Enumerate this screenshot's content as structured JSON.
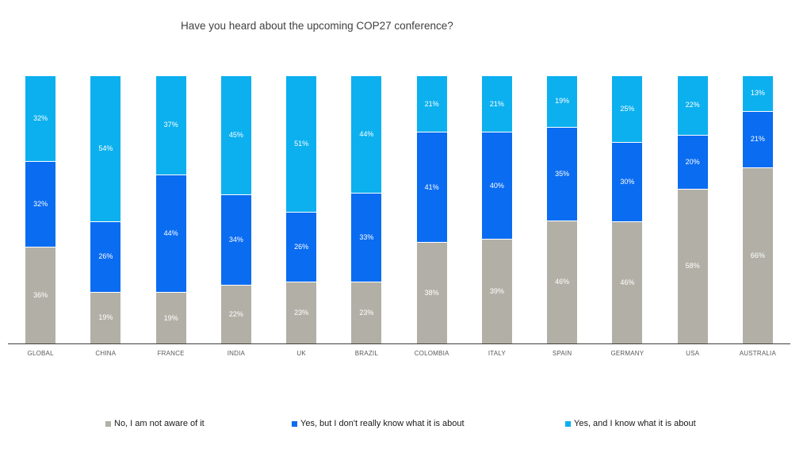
{
  "title": "Have you heard about the upcoming COP27 conference?",
  "colors": {
    "axis_line": "#404040",
    "axis_label_text": "#595959",
    "title_text": "#404040",
    "bar_value_text": "#ffffff",
    "legend_text": "#1a1a1a",
    "background": "#ffffff"
  },
  "chart_data": {
    "type": "bar",
    "stacked": true,
    "normalized_100_percent": true,
    "unit": "%",
    "title": "Have you heard about the upcoming COP27 conference?",
    "xlabel": "",
    "ylabel": "",
    "ylim": [
      0,
      100
    ],
    "grid": false,
    "legend_position": "bottom",
    "categories": [
      "GLOBAL",
      "CHINA",
      "FRANCE",
      "INDIA",
      "UK",
      "BRAZIL",
      "COLOMBIA",
      "ITALY",
      "SPAIN",
      "GERMANY",
      "USA",
      "AUSTRALIA"
    ],
    "series": [
      {
        "name": "No, I am not aware of it",
        "color": "#b2b0a6",
        "stack_order": "bottom",
        "values": [
          36,
          19,
          19,
          22,
          23,
          23,
          38,
          39,
          46,
          46,
          58,
          66
        ]
      },
      {
        "name": "Yes, but I don't really know what it is about",
        "color": "#0a6cf1",
        "stack_order": "middle",
        "values": [
          32,
          26,
          44,
          34,
          26,
          33,
          41,
          40,
          35,
          30,
          20,
          21
        ]
      },
      {
        "name": "Yes, and I know what it is about",
        "color": "#0cb0ef",
        "stack_order": "top",
        "values": [
          32,
          54,
          37,
          45,
          51,
          44,
          21,
          21,
          19,
          25,
          22,
          13
        ]
      }
    ]
  }
}
